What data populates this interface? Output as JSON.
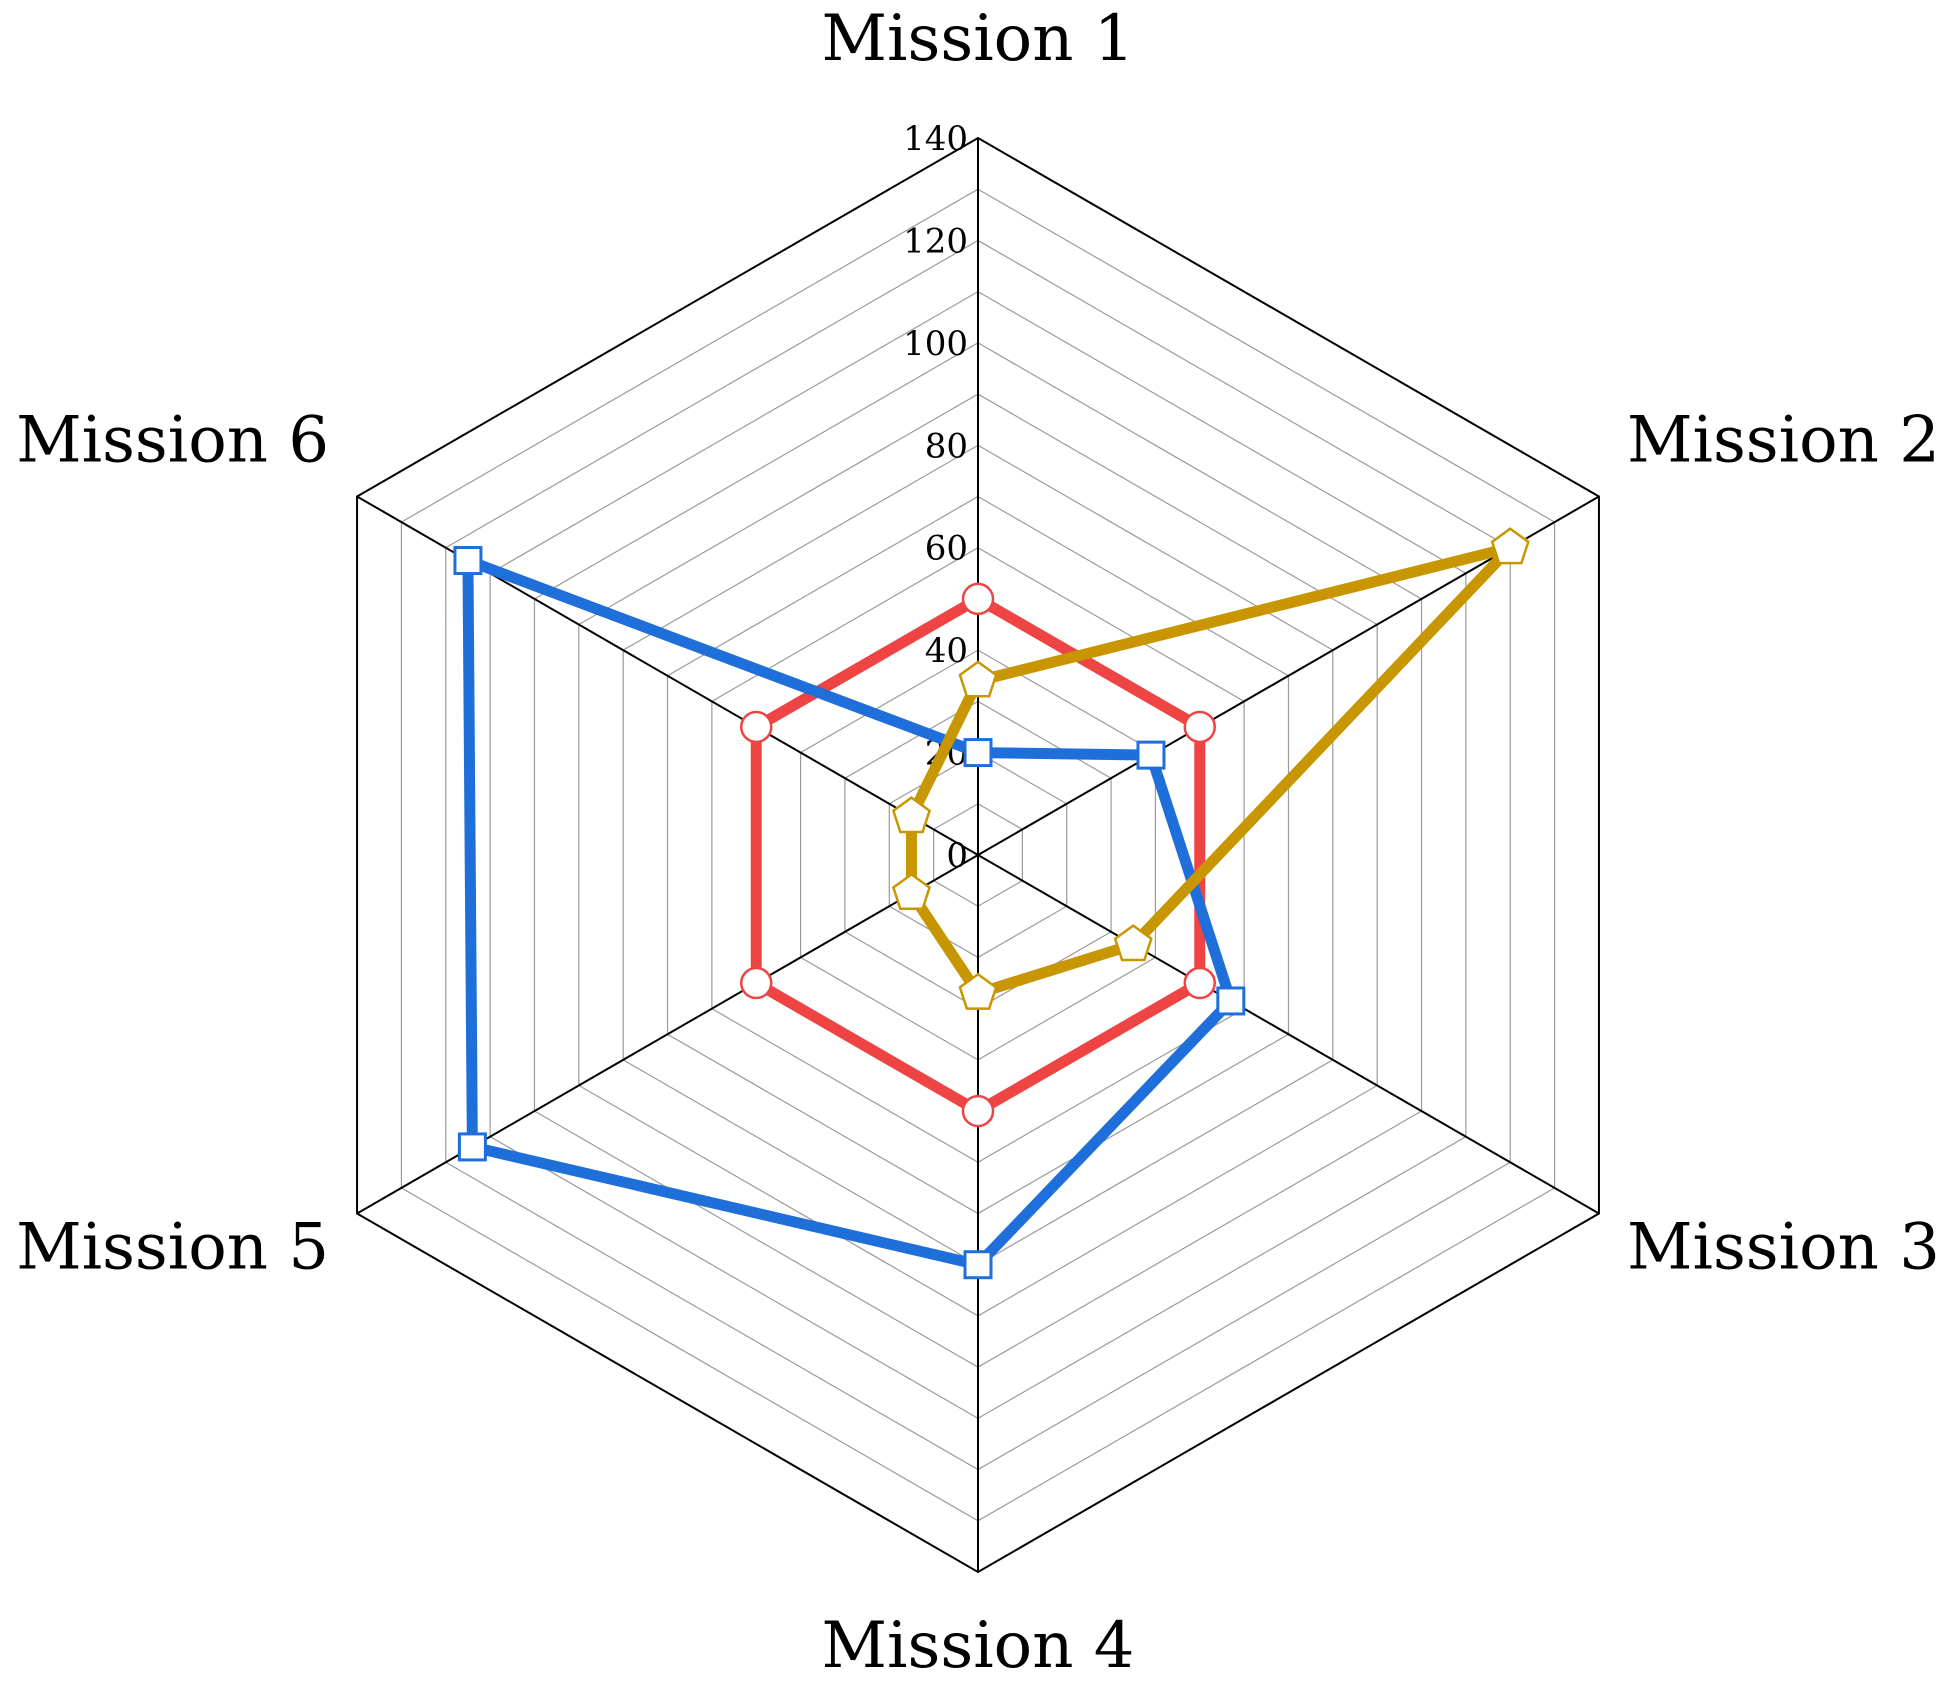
{
  "chart_data": {
    "type": "radar",
    "axes": [
      "Mission 1",
      "Mission 2",
      "Mission 3",
      "Mission 4",
      "Mission 5",
      "Mission 6"
    ],
    "ticks": [
      0,
      20,
      40,
      60,
      80,
      100,
      120,
      140
    ],
    "rmax": 140,
    "grid": true,
    "series": [
      {
        "color": "#ef4444",
        "marker": "circle",
        "values": [
          50,
          50,
          50,
          50,
          50,
          50
        ]
      },
      {
        "color": "#1f6fdb",
        "marker": "square",
        "values": [
          20,
          39,
          57,
          80,
          114,
          115
        ]
      },
      {
        "color": "#c89600",
        "marker": "pentagon",
        "values": [
          34,
          120,
          35,
          27,
          15,
          15
        ]
      }
    ]
  }
}
